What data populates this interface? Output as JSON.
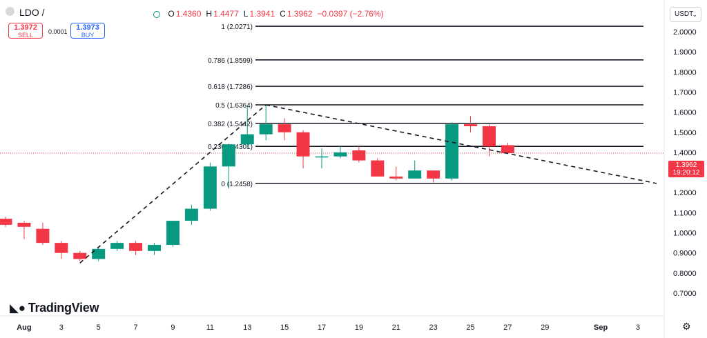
{
  "header": {
    "symbol": "LDO /",
    "ohlc": [
      {
        "key": "O",
        "value": "1.4360"
      },
      {
        "key": "H",
        "value": "1.4477"
      },
      {
        "key": "L",
        "value": "1.3941"
      },
      {
        "key": "C",
        "value": "1.3962"
      },
      {
        "key": "",
        "value": "−0.0397 (−2.76%)"
      }
    ]
  },
  "trade": {
    "sell_price": "1.3972",
    "sell_label": "SELL",
    "spread": "0.0001",
    "buy_price": "1.3973",
    "buy_label": "BUY"
  },
  "currency": "USDT",
  "last_price": {
    "value": "1.3962",
    "countdown": "19:20:12"
  },
  "brand": "TradingView",
  "colors": {
    "up": "#089981",
    "down": "#f23645",
    "fib": "#131722",
    "grid": "#f0f3fa"
  },
  "icons": {
    "settings": "gear-icon",
    "logo": "tradingview-logo-icon"
  },
  "chart_data": {
    "type": "candlestick",
    "y_axis": {
      "ticks": [
        "2.0000",
        "1.9000",
        "1.8000",
        "1.7000",
        "1.6000",
        "1.5000",
        "1.4000",
        "1.3000",
        "1.2000",
        "1.1000",
        "1.0000",
        "0.9000",
        "0.8000",
        "0.7000"
      ],
      "min": 0.68,
      "max": 2.08
    },
    "x_axis": {
      "ticks": [
        {
          "day": 1,
          "label": "Aug"
        },
        {
          "day": 3,
          "label": "3"
        },
        {
          "day": 5,
          "label": "5"
        },
        {
          "day": 7,
          "label": "7"
        },
        {
          "day": 9,
          "label": "9"
        },
        {
          "day": 11,
          "label": "11"
        },
        {
          "day": 13,
          "label": "13"
        },
        {
          "day": 15,
          "label": "15"
        },
        {
          "day": 17,
          "label": "17"
        },
        {
          "day": 19,
          "label": "19"
        },
        {
          "day": 21,
          "label": "21"
        },
        {
          "day": 23,
          "label": "23"
        },
        {
          "day": 25,
          "label": "25"
        },
        {
          "day": 27,
          "label": "27"
        },
        {
          "day": 29,
          "label": "29"
        },
        {
          "day": 32,
          "label": "Sep"
        },
        {
          "day": 34,
          "label": "3"
        }
      ],
      "min_day": -0.1,
      "max_day": 35.8
    },
    "candles": [
      {
        "day": 0,
        "open": 1.07,
        "high": 1.08,
        "low": 1.03,
        "close": 1.04
      },
      {
        "day": 1,
        "open": 1.05,
        "high": 1.06,
        "low": 0.97,
        "close": 1.03
      },
      {
        "day": 2,
        "open": 1.02,
        "high": 1.05,
        "low": 0.94,
        "close": 0.95
      },
      {
        "day": 3,
        "open": 0.95,
        "high": 0.96,
        "low": 0.87,
        "close": 0.9
      },
      {
        "day": 4,
        "open": 0.9,
        "high": 0.91,
        "low": 0.86,
        "close": 0.87
      },
      {
        "day": 5,
        "open": 0.87,
        "high": 0.93,
        "low": 0.86,
        "close": 0.92
      },
      {
        "day": 6,
        "open": 0.92,
        "high": 0.96,
        "low": 0.91,
        "close": 0.95
      },
      {
        "day": 7,
        "open": 0.95,
        "high": 0.96,
        "low": 0.89,
        "close": 0.91
      },
      {
        "day": 8,
        "open": 0.91,
        "high": 0.95,
        "low": 0.89,
        "close": 0.94
      },
      {
        "day": 9,
        "open": 0.94,
        "high": 1.06,
        "low": 0.93,
        "close": 1.06
      },
      {
        "day": 10,
        "open": 1.06,
        "high": 1.14,
        "low": 1.04,
        "close": 1.12
      },
      {
        "day": 11,
        "open": 1.12,
        "high": 1.35,
        "low": 1.11,
        "close": 1.33
      },
      {
        "day": 12,
        "open": 1.33,
        "high": 1.44,
        "low": 1.22,
        "close": 1.44
      },
      {
        "day": 13,
        "open": 1.44,
        "high": 1.63,
        "low": 1.42,
        "close": 1.49
      },
      {
        "day": 14,
        "open": 1.49,
        "high": 1.6364,
        "low": 1.46,
        "close": 1.54
      },
      {
        "day": 15,
        "open": 1.54,
        "high": 1.57,
        "low": 1.46,
        "close": 1.5
      },
      {
        "day": 16,
        "open": 1.5,
        "high": 1.51,
        "low": 1.32,
        "close": 1.38
      },
      {
        "day": 17,
        "open": 1.38,
        "high": 1.42,
        "low": 1.32,
        "close": 1.38
      },
      {
        "day": 18,
        "open": 1.38,
        "high": 1.43,
        "low": 1.37,
        "close": 1.4
      },
      {
        "day": 19,
        "open": 1.41,
        "high": 1.43,
        "low": 1.35,
        "close": 1.36
      },
      {
        "day": 20,
        "open": 1.36,
        "high": 1.37,
        "low": 1.28,
        "close": 1.28
      },
      {
        "day": 21,
        "open": 1.28,
        "high": 1.33,
        "low": 1.26,
        "close": 1.27
      },
      {
        "day": 22,
        "open": 1.27,
        "high": 1.36,
        "low": 1.27,
        "close": 1.31
      },
      {
        "day": 23,
        "open": 1.31,
        "high": 1.31,
        "low": 1.25,
        "close": 1.27
      },
      {
        "day": 24,
        "open": 1.27,
        "high": 1.55,
        "low": 1.26,
        "close": 1.54
      },
      {
        "day": 25,
        "open": 1.54,
        "high": 1.58,
        "low": 1.5,
        "close": 1.53
      },
      {
        "day": 26,
        "open": 1.53,
        "high": 1.54,
        "low": 1.38,
        "close": 1.43
      },
      {
        "day": 27,
        "open": 1.436,
        "high": 1.4477,
        "low": 1.3941,
        "close": 1.3962
      }
    ],
    "fib_levels": [
      {
        "label": "1 (2.0271)",
        "value": 2.0271
      },
      {
        "label": "0.786 (1.8599)",
        "value": 1.8599
      },
      {
        "label": "0.618 (1.7286)",
        "value": 1.7286
      },
      {
        "label": "0.5 (1.6364)",
        "value": 1.6364
      },
      {
        "label": "0.382 (1.5442)",
        "value": 1.5442
      },
      {
        "label": "0.236 (1.4301)",
        "value": 1.4301
      },
      {
        "label": "0 (1.2458)",
        "value": 1.2458
      }
    ],
    "fib_range_days": [
      14,
      35
    ],
    "trend_lines": [
      {
        "from": {
          "day": 4,
          "price": 0.85
        },
        "to": {
          "day": 14,
          "price": 1.6364
        }
      },
      {
        "from": {
          "day": 14,
          "price": 1.6364
        },
        "to": {
          "day": 35,
          "price": 1.2458
        }
      }
    ],
    "last_price_line": 1.3962
  }
}
